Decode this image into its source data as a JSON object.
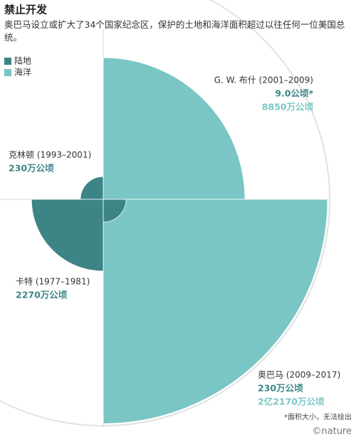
{
  "chart_data": {
    "type": "polar-area",
    "title": "禁止开发",
    "subtitle": "奥巴马设立或扩大了34个国家纪念区，保护的土地和海洋面积超过以往任何一位美国总统。",
    "categories": [
      "G. W. 布什  (2001–2009)",
      "克林顿 (1993–2001)",
      "卡特 (1977–1981)",
      "奥巴马 (2009–2017)"
    ],
    "series": [
      {
        "name": "陆地",
        "color": "#3d8486",
        "values": [
          0.0009,
          230,
          2270,
          230
        ],
        "value_labels": [
          "9.0公顷*",
          "230万公顷",
          "2270万公顷",
          "230万公顷"
        ]
      },
      {
        "name": "海洋",
        "color": "#7ac6c4",
        "values": [
          8850,
          null,
          null,
          22170
        ],
        "value_labels": [
          "8850万公顷",
          null,
          null,
          "2亿2170万公顷"
        ]
      }
    ],
    "note": "*面积大小，无法绘出",
    "credit": "©nature"
  }
}
